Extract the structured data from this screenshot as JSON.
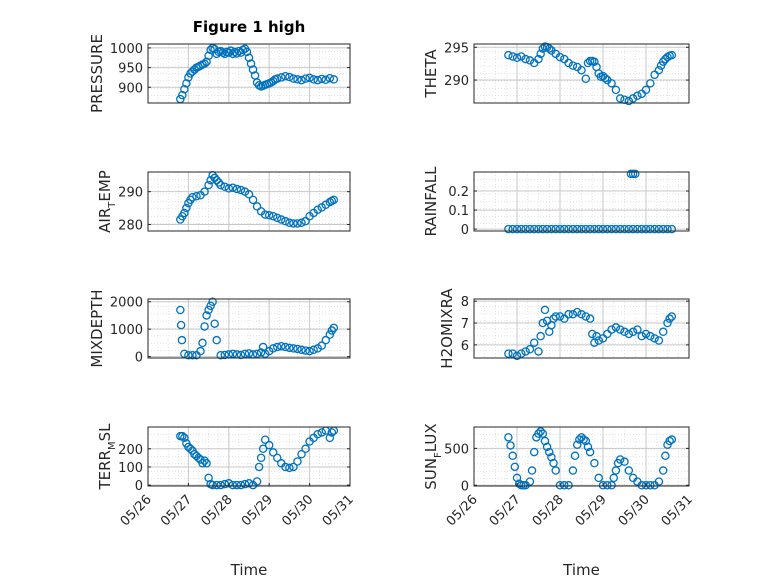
{
  "figure": {
    "title": "Figure 1 high"
  },
  "colors": {
    "marker": "#0072bd",
    "axis": "#262626",
    "grid": "#d9d9d9",
    "background": "#ffffff"
  },
  "chart_data": [
    {
      "type": "scatter",
      "ylabel": "PRESSURE",
      "ylabel_sub": "",
      "ylim": [
        860,
        1010
      ],
      "yticks": [
        900,
        950,
        1000
      ],
      "yticklabels": [
        "900",
        "950",
        "1000"
      ],
      "xlim": [
        0,
        5
      ],
      "xticks": [],
      "xticklabels": [],
      "xlabel": "",
      "title": "Figure 1 high",
      "x": [
        0.8,
        0.85,
        0.9,
        0.95,
        1.0,
        1.05,
        1.1,
        1.15,
        1.2,
        1.25,
        1.3,
        1.35,
        1.4,
        1.45,
        1.5,
        1.55,
        1.6,
        1.65,
        1.7,
        1.75,
        1.8,
        1.85,
        1.9,
        1.95,
        2.0,
        2.05,
        2.1,
        2.15,
        2.2,
        2.25,
        2.3,
        2.35,
        2.4,
        2.45,
        2.5,
        2.55,
        2.6,
        2.65,
        2.7,
        2.75,
        2.8,
        2.85,
        2.9,
        2.95,
        3.0,
        3.05,
        3.1,
        3.15,
        3.2,
        3.3,
        3.4,
        3.5,
        3.6,
        3.7,
        3.8,
        3.9,
        4.0,
        4.1,
        4.2,
        4.3,
        4.4,
        4.5,
        4.6
      ],
      "y": [
        870,
        880,
        895,
        910,
        925,
        935,
        940,
        945,
        950,
        952,
        955,
        958,
        960,
        965,
        980,
        995,
        1000,
        997,
        985,
        990,
        992,
        988,
        985,
        990,
        988,
        993,
        985,
        990,
        986,
        992,
        988,
        995,
        998,
        990,
        975,
        960,
        945,
        930,
        912,
        905,
        902,
        904,
        906,
        908,
        910,
        912,
        916,
        920,
        922,
        925,
        928,
        926,
        922,
        920,
        918,
        922,
        924,
        920,
        918,
        921,
        919,
        923,
        920
      ]
    },
    {
      "type": "scatter",
      "ylabel": "THETA",
      "ylabel_sub": "",
      "ylim": [
        286.5,
        295.5
      ],
      "yticks": [
        290,
        295
      ],
      "yticklabels": [
        "290",
        "295"
      ],
      "xlim": [
        0,
        5
      ],
      "xticks": [],
      "xticklabels": [],
      "xlabel": "",
      "x": [
        0.8,
        0.9,
        1.0,
        1.1,
        1.2,
        1.3,
        1.4,
        1.5,
        1.55,
        1.6,
        1.65,
        1.7,
        1.75,
        1.8,
        1.9,
        2.0,
        2.1,
        2.2,
        2.3,
        2.4,
        2.5,
        2.6,
        2.65,
        2.7,
        2.75,
        2.8,
        2.85,
        2.9,
        2.95,
        3.0,
        3.05,
        3.1,
        3.2,
        3.3,
        3.4,
        3.5,
        3.6,
        3.7,
        3.8,
        3.9,
        4.0,
        4.1,
        4.2,
        4.3,
        4.35,
        4.4,
        4.45,
        4.5,
        4.55,
        4.6
      ],
      "y": [
        293.8,
        293.6,
        293.4,
        293.6,
        293.2,
        293.0,
        292.6,
        293.2,
        294.0,
        294.8,
        295.1,
        295.0,
        294.8,
        294.5,
        294.0,
        293.5,
        293.2,
        292.6,
        292.2,
        292.0,
        291.5,
        290.2,
        292.6,
        292.9,
        292.9,
        292.8,
        292.0,
        291.0,
        290.5,
        290.6,
        290.3,
        290.0,
        289.5,
        288.5,
        287.2,
        287.0,
        286.8,
        287.2,
        287.6,
        287.9,
        288.5,
        289.5,
        290.8,
        291.5,
        292.2,
        292.8,
        293.2,
        293.5,
        293.7,
        293.8
      ]
    },
    {
      "type": "scatter",
      "ylabel": "AIR",
      "ylabel_sub": "T",
      "ylabel_tail": "EMP",
      "ylim": [
        278,
        296
      ],
      "yticks": [
        280,
        290
      ],
      "yticklabels": [
        "280",
        "290"
      ],
      "xlim": [
        0,
        5
      ],
      "xticks": [],
      "xticklabels": [],
      "xlabel": "",
      "x": [
        0.8,
        0.85,
        0.9,
        0.95,
        1.0,
        1.05,
        1.1,
        1.2,
        1.3,
        1.4,
        1.5,
        1.55,
        1.6,
        1.65,
        1.7,
        1.75,
        1.8,
        1.9,
        2.0,
        2.1,
        2.2,
        2.3,
        2.4,
        2.5,
        2.6,
        2.7,
        2.8,
        2.9,
        3.0,
        3.1,
        3.2,
        3.3,
        3.4,
        3.5,
        3.6,
        3.7,
        3.8,
        3.9,
        4.0,
        4.1,
        4.2,
        4.3,
        4.4,
        4.5,
        4.55,
        4.6
      ],
      "y": [
        281.5,
        282.5,
        283.5,
        285.0,
        286.5,
        287.5,
        288.3,
        288.6,
        288.9,
        290.0,
        292.0,
        293.5,
        295.0,
        294.2,
        293.5,
        292.8,
        292.0,
        291.5,
        291.0,
        291.2,
        290.8,
        290.5,
        290.0,
        289.2,
        287.5,
        285.5,
        284.0,
        283.0,
        282.8,
        282.5,
        282.0,
        281.5,
        281.0,
        280.5,
        280.3,
        280.3,
        280.5,
        281.0,
        282.5,
        283.5,
        284.5,
        285.2,
        286.0,
        286.8,
        287.2,
        287.5
      ]
    },
    {
      "type": "scatter",
      "ylabel": "RAINFALL",
      "ylabel_sub": "",
      "ylim": [
        -0.01,
        0.3
      ],
      "yticks": [
        0,
        0.1,
        0.2
      ],
      "yticklabels": [
        "0",
        "0.1",
        "0.2"
      ],
      "xlim": [
        0,
        5
      ],
      "xticks": [],
      "xticklabels": [],
      "xlabel": "",
      "x": [
        0.8,
        0.9,
        1.0,
        1.1,
        1.2,
        1.3,
        1.4,
        1.5,
        1.6,
        1.7,
        1.8,
        1.9,
        2.0,
        2.1,
        2.2,
        2.3,
        2.4,
        2.5,
        2.6,
        2.7,
        2.8,
        2.9,
        3.0,
        3.1,
        3.2,
        3.3,
        3.4,
        3.5,
        3.6,
        3.7,
        3.8,
        3.9,
        4.0,
        4.1,
        4.2,
        4.3,
        4.4,
        4.5,
        4.6,
        3.65,
        3.7,
        3.75
      ],
      "y": [
        0,
        0,
        0,
        0,
        0,
        0,
        0,
        0,
        0,
        0,
        0,
        0,
        0,
        0,
        0,
        0,
        0,
        0,
        0,
        0,
        0,
        0,
        0,
        0,
        0,
        0,
        0,
        0,
        0,
        0,
        0,
        0,
        0,
        0,
        0,
        0,
        0,
        0,
        0,
        0.29,
        0.29,
        0.29
      ]
    },
    {
      "type": "scatter",
      "ylabel": "MIXDEPTH",
      "ylabel_sub": "",
      "ylim": [
        -50,
        2100
      ],
      "yticks": [
        0,
        1000,
        2000
      ],
      "yticklabels": [
        "0",
        "1000",
        "2000"
      ],
      "xlim": [
        0,
        5
      ],
      "xticks": [],
      "xticklabels": [],
      "xlabel": "",
      "x": [
        0.8,
        0.82,
        0.84,
        0.9,
        1.0,
        1.1,
        1.2,
        1.3,
        1.35,
        1.4,
        1.45,
        1.5,
        1.55,
        1.6,
        1.65,
        1.7,
        1.8,
        1.9,
        2.0,
        2.1,
        2.2,
        2.3,
        2.4,
        2.5,
        2.6,
        2.7,
        2.8,
        2.85,
        2.9,
        3.0,
        3.1,
        3.2,
        3.3,
        3.4,
        3.5,
        3.6,
        3.7,
        3.8,
        3.9,
        4.0,
        4.1,
        4.2,
        4.3,
        4.4,
        4.5,
        4.55,
        4.6
      ],
      "y": [
        1700,
        1150,
        600,
        100,
        50,
        50,
        50,
        200,
        500,
        1100,
        1500,
        1700,
        1850,
        2000,
        1200,
        600,
        50,
        60,
        80,
        100,
        80,
        60,
        100,
        120,
        80,
        100,
        150,
        350,
        100,
        200,
        300,
        350,
        380,
        350,
        320,
        300,
        280,
        250,
        220,
        200,
        250,
        300,
        400,
        600,
        800,
        950,
        1050
      ]
    },
    {
      "type": "scatter",
      "ylabel": "H2OMIXRA",
      "ylabel_sub": "",
      "ylim": [
        5.4,
        8.1
      ],
      "yticks": [
        6,
        7,
        8
      ],
      "yticklabels": [
        "6",
        "7",
        "8"
      ],
      "xlim": [
        0,
        5
      ],
      "xticks": [],
      "xticklabels": [],
      "xlabel": "",
      "x": [
        0.8,
        0.9,
        1.0,
        1.1,
        1.2,
        1.3,
        1.4,
        1.5,
        1.55,
        1.6,
        1.65,
        1.7,
        1.75,
        1.8,
        1.85,
        1.9,
        2.0,
        2.1,
        2.2,
        2.3,
        2.4,
        2.5,
        2.6,
        2.7,
        2.75,
        2.8,
        2.85,
        2.9,
        3.0,
        3.1,
        3.2,
        3.3,
        3.4,
        3.5,
        3.6,
        3.7,
        3.8,
        3.9,
        4.0,
        4.1,
        4.2,
        4.3,
        4.4,
        4.5,
        4.55,
        4.6
      ],
      "y": [
        5.6,
        5.6,
        5.5,
        5.6,
        5.7,
        5.8,
        6.1,
        5.7,
        6.4,
        7.0,
        7.6,
        7.1,
        6.6,
        6.9,
        7.2,
        7.3,
        7.3,
        7.2,
        7.4,
        7.4,
        7.5,
        7.4,
        7.3,
        7.2,
        6.5,
        6.1,
        6.4,
        6.2,
        6.3,
        6.5,
        6.7,
        6.8,
        6.7,
        6.6,
        6.5,
        6.6,
        6.7,
        6.4,
        6.5,
        6.4,
        6.3,
        6.2,
        6.6,
        7.0,
        7.2,
        7.3
      ]
    },
    {
      "type": "scatter",
      "ylabel": "TERR",
      "ylabel_sub": "M",
      "ylabel_tail": "SL",
      "ylim": [
        -5,
        320
      ],
      "yticks": [
        0,
        100,
        200
      ],
      "yticklabels": [
        "0",
        "100",
        "200"
      ],
      "xlim": [
        0,
        5
      ],
      "xticks": [
        0,
        1,
        2,
        3,
        4,
        5
      ],
      "xticklabels": [
        "05/26",
        "05/27",
        "05/28",
        "05/29",
        "05/30",
        "05/31"
      ],
      "xlabel": "Time",
      "x": [
        0.8,
        0.85,
        0.9,
        0.95,
        1.0,
        1.05,
        1.1,
        1.15,
        1.2,
        1.25,
        1.3,
        1.35,
        1.4,
        1.45,
        1.5,
        1.55,
        1.6,
        1.7,
        1.8,
        1.9,
        2.0,
        2.1,
        2.2,
        2.3,
        2.4,
        2.5,
        2.6,
        2.7,
        2.75,
        2.8,
        2.85,
        2.9,
        3.0,
        3.1,
        3.2,
        3.3,
        3.4,
        3.5,
        3.6,
        3.7,
        3.8,
        3.9,
        4.0,
        4.1,
        4.2,
        4.3,
        4.4,
        4.5,
        4.55,
        4.6
      ],
      "y": [
        270,
        270,
        260,
        230,
        210,
        200,
        190,
        170,
        160,
        150,
        140,
        120,
        135,
        120,
        40,
        5,
        0,
        0,
        0,
        5,
        10,
        0,
        0,
        0,
        5,
        10,
        0,
        20,
        100,
        150,
        200,
        250,
        220,
        180,
        150,
        120,
        100,
        95,
        100,
        130,
        170,
        200,
        240,
        260,
        280,
        290,
        300,
        260,
        290,
        300
      ]
    },
    {
      "type": "scatter",
      "ylabel": "SUN",
      "ylabel_sub": "F",
      "ylabel_tail": "LUX",
      "ylim": [
        -10,
        790
      ],
      "yticks": [
        0,
        500
      ],
      "yticklabels": [
        "0",
        "500"
      ],
      "xlim": [
        0,
        5
      ],
      "xticks": [
        0,
        1,
        2,
        3,
        4,
        5
      ],
      "xticklabels": [
        "05/26",
        "05/27",
        "05/28",
        "05/29",
        "05/30",
        "05/31"
      ],
      "xlabel": "Time",
      "x": [
        0.8,
        0.85,
        0.9,
        0.95,
        1.0,
        1.05,
        1.1,
        1.15,
        1.2,
        1.3,
        1.35,
        1.4,
        1.45,
        1.5,
        1.55,
        1.6,
        1.65,
        1.7,
        1.75,
        1.8,
        1.85,
        1.9,
        2.0,
        2.1,
        2.2,
        2.3,
        2.35,
        2.4,
        2.45,
        2.5,
        2.55,
        2.6,
        2.65,
        2.7,
        2.8,
        2.9,
        3.0,
        3.1,
        3.2,
        3.25,
        3.3,
        3.35,
        3.4,
        3.5,
        3.6,
        3.7,
        3.8,
        3.9,
        4.0,
        4.1,
        4.2,
        4.3,
        4.4,
        4.45,
        4.5,
        4.55,
        4.6
      ],
      "y": [
        650,
        540,
        400,
        250,
        100,
        20,
        0,
        0,
        0,
        50,
        200,
        450,
        650,
        700,
        730,
        700,
        600,
        520,
        450,
        380,
        300,
        200,
        0,
        0,
        0,
        200,
        400,
        550,
        620,
        650,
        620,
        600,
        520,
        450,
        300,
        100,
        0,
        0,
        0,
        100,
        200,
        300,
        350,
        320,
        200,
        100,
        50,
        0,
        0,
        0,
        0,
        50,
        200,
        400,
        550,
        600,
        620
      ]
    }
  ]
}
